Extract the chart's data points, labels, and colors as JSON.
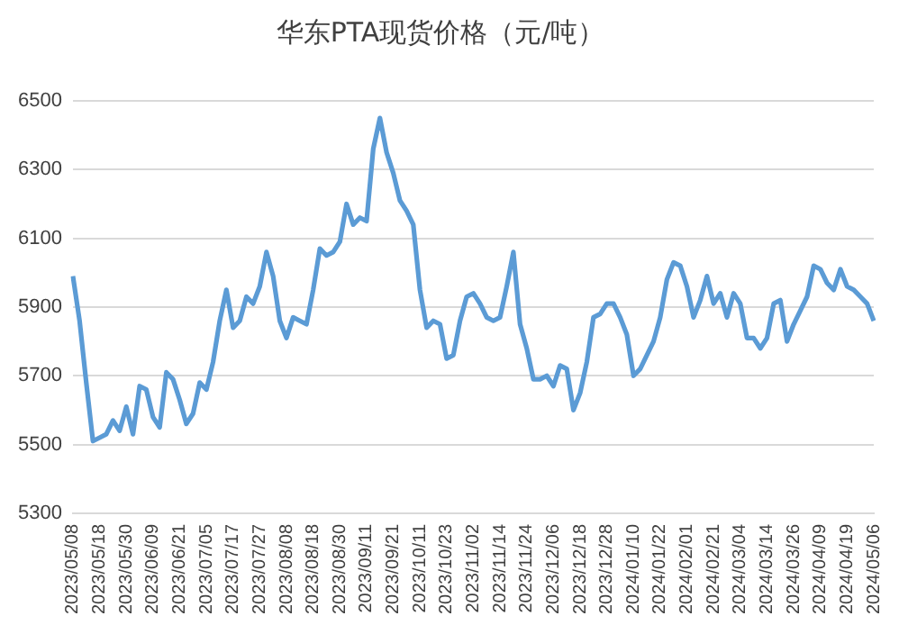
{
  "chart_data": {
    "type": "line",
    "title": "华东PTA现货价格（元/吨）",
    "categories": [
      "2023/05/08",
      null,
      null,
      null,
      "2023/05/18",
      null,
      null,
      null,
      "2023/05/30",
      null,
      null,
      null,
      "2023/06/09",
      null,
      null,
      null,
      "2023/06/21",
      null,
      null,
      null,
      "2023/07/05",
      null,
      null,
      null,
      "2023/07/17",
      null,
      null,
      null,
      "2023/07/27",
      null,
      null,
      null,
      "2023/08/08",
      null,
      null,
      null,
      "2023/08/18",
      null,
      null,
      null,
      "2023/08/30",
      null,
      null,
      null,
      "2023/09/11",
      null,
      null,
      null,
      "2023/09/21",
      null,
      null,
      null,
      "2023/10/11",
      null,
      null,
      null,
      "2023/10/23",
      null,
      null,
      null,
      "2023/11/02",
      null,
      null,
      null,
      "2023/11/14",
      null,
      null,
      null,
      "2023/11/24",
      null,
      null,
      null,
      "2023/12/06",
      null,
      null,
      null,
      "2023/12/18",
      null,
      null,
      null,
      "2023/12/28",
      null,
      null,
      null,
      "2024/01/10",
      null,
      null,
      null,
      "2024/01/22",
      null,
      null,
      null,
      "2024/02/01",
      null,
      null,
      null,
      "2024/02/21",
      null,
      null,
      null,
      "2024/03/04",
      null,
      null,
      null,
      "2024/03/14",
      null,
      null,
      null,
      "2024/03/26",
      null,
      null,
      null,
      "2024/04/09",
      null,
      null,
      null,
      "2024/04/19",
      null,
      null,
      null,
      "2024/05/06"
    ],
    "series": [
      {
        "color": "#5b9bd5",
        "values": [
          5990,
          5860,
          5680,
          5510,
          5520,
          5530,
          5570,
          5540,
          5610,
          5530,
          5670,
          5660,
          5580,
          5550,
          5710,
          5690,
          5630,
          5560,
          5590,
          5680,
          5660,
          5740,
          5860,
          5950,
          5840,
          5860,
          5930,
          5910,
          5960,
          6060,
          5990,
          5860,
          5810,
          5870,
          5860,
          5850,
          5950,
          6070,
          6050,
          6060,
          6090,
          6200,
          6140,
          6160,
          6150,
          6360,
          6450,
          6350,
          6290,
          6210,
          6180,
          6140,
          5950,
          5840,
          5860,
          5850,
          5750,
          5760,
          5860,
          5930,
          5940,
          5910,
          5870,
          5860,
          5870,
          5960,
          6060,
          5850,
          5780,
          5690,
          5690,
          5700,
          5670,
          5730,
          5720,
          5600,
          5650,
          5740,
          5870,
          5880,
          5910,
          5910,
          5870,
          5820,
          5700,
          5720,
          5760,
          5800,
          5870,
          5980,
          6030,
          6020,
          5960,
          5870,
          5920,
          5990,
          5910,
          5940,
          5870,
          5940,
          5910,
          5810,
          5810,
          5780,
          5810,
          5910,
          5920,
          5800,
          5850,
          5890,
          5930,
          6020,
          6010,
          5970,
          5950,
          6010,
          5960,
          5950,
          5930,
          5910,
          5860
        ]
      }
    ],
    "ylim": [
      5300,
      6500
    ],
    "yticks": [
      5300,
      5500,
      5700,
      5900,
      6100,
      6300,
      6500
    ],
    "grid": "y",
    "legend": false,
    "marker": "none",
    "line_style": "solid"
  }
}
